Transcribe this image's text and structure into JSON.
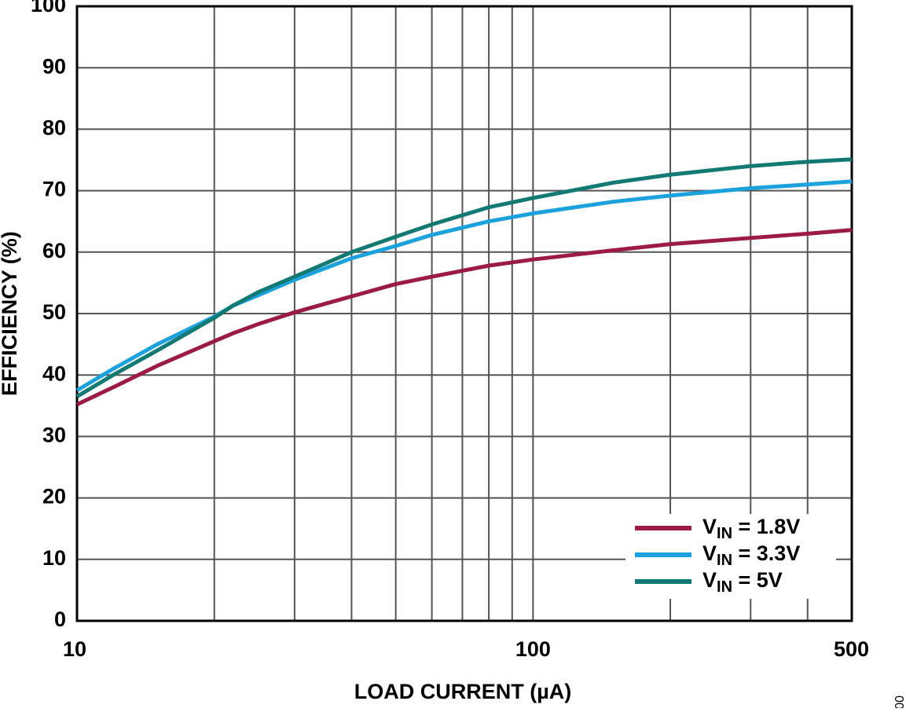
{
  "chart_data": {
    "type": "line",
    "x_label": "LOAD CURRENT (µA)",
    "y_label": "EFFICIENCY (%)",
    "figure_id": "002",
    "x": [
      10,
      12,
      15,
      20,
      22,
      25,
      30,
      40,
      50,
      60,
      80,
      100,
      150,
      200,
      300,
      400,
      500
    ],
    "series": [
      {
        "name": "VIN = 1.8V",
        "color": "#9b1b46",
        "values": [
          35.2,
          38,
          41.5,
          45.5,
          46.8,
          48.3,
          50.2,
          52.8,
          54.8,
          56,
          57.8,
          58.8,
          60.3,
          61.3,
          62.3,
          63,
          63.6
        ]
      },
      {
        "name": "VIN = 3.3V",
        "color": "#1ba1db",
        "values": [
          37.5,
          41,
          45,
          49.5,
          51.3,
          53,
          55.5,
          59,
          61,
          62.8,
          65,
          66.3,
          68.2,
          69.2,
          70.4,
          71,
          71.5
        ]
      },
      {
        "name": "VIN = 5V",
        "color": "#127a73",
        "values": [
          36.5,
          40,
          44,
          49.3,
          51.3,
          53.5,
          56,
          60,
          62.5,
          64.5,
          67.3,
          68.8,
          71.3,
          72.6,
          74,
          74.7,
          75.1
        ]
      }
    ],
    "xlim": [
      10,
      500
    ],
    "xscale": "log",
    "xticks": [
      10,
      100,
      500
    ],
    "x_minor_grid": [
      20,
      30,
      40,
      50,
      60,
      70,
      80,
      90,
      200,
      300,
      400
    ],
    "ylim": [
      0,
      100
    ],
    "yticks": [
      0,
      10,
      20,
      30,
      40,
      50,
      60,
      70,
      80,
      90,
      100
    ],
    "grid": true,
    "legend": "lower right"
  }
}
